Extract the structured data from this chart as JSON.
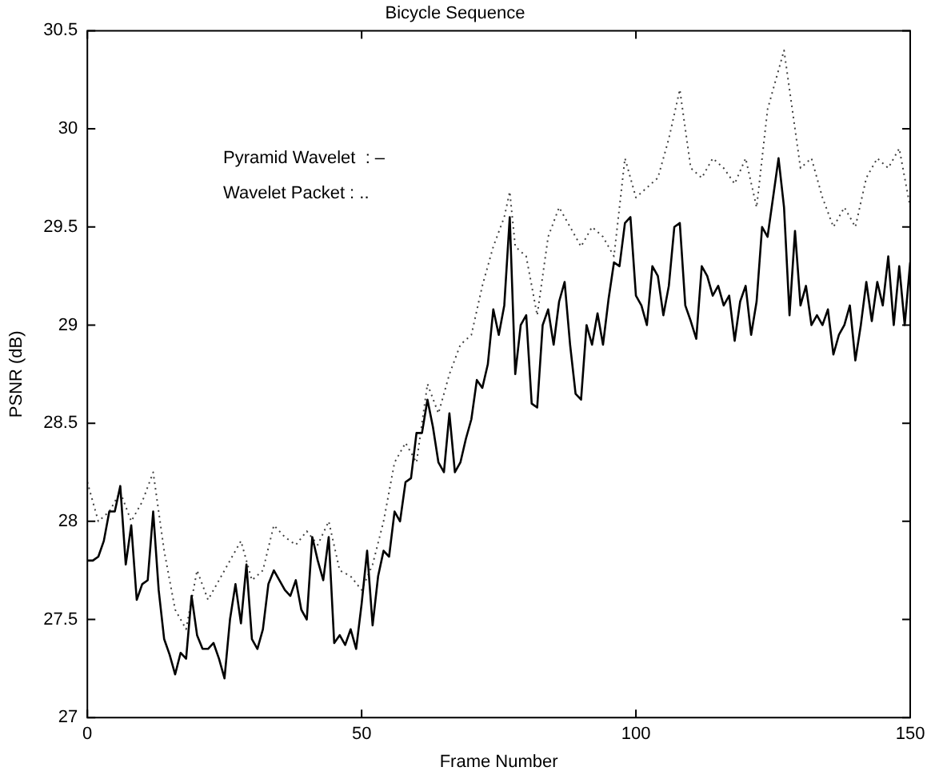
{
  "chart_data": {
    "type": "line",
    "title": "Bicycle Sequence",
    "xlabel": "Frame Number",
    "ylabel": "PSNR (dB)",
    "annotations": [
      "Pyramid Wavelet  : –",
      "Wavelet Packet : .."
    ],
    "xlim": [
      0,
      150
    ],
    "xticks": [
      0,
      50,
      100,
      150
    ],
    "ylim": [
      27,
      30.5
    ],
    "yticks": [
      27,
      27.5,
      28,
      28.5,
      29,
      29.5,
      30,
      30.5
    ],
    "legend": false,
    "series": [
      {
        "color": "#000000",
        "line_style": "solid",
        "x": [
          0,
          1,
          2,
          3,
          4,
          5,
          6,
          7,
          8,
          9,
          10,
          11,
          12,
          13,
          14,
          15,
          16,
          17,
          18,
          19,
          20,
          21,
          22,
          23,
          24,
          25,
          26,
          27,
          28,
          29,
          30,
          31,
          32,
          33,
          34,
          35,
          36,
          37,
          38,
          39,
          40,
          41,
          42,
          43,
          44,
          45,
          46,
          47,
          48,
          49,
          50,
          51,
          52,
          53,
          54,
          55,
          56,
          57,
          58,
          59,
          60,
          61,
          62,
          63,
          64,
          65,
          66,
          67,
          68,
          69,
          70,
          71,
          72,
          73,
          74,
          75,
          76,
          77,
          78,
          79,
          80,
          81,
          82,
          83,
          84,
          85,
          86,
          87,
          88,
          89,
          90,
          91,
          92,
          93,
          94,
          95,
          96,
          97,
          98,
          99,
          100,
          101,
          102,
          103,
          104,
          105,
          106,
          107,
          108,
          109,
          110,
          111,
          112,
          113,
          114,
          115,
          116,
          117,
          118,
          119,
          120,
          121,
          122,
          123,
          124,
          125,
          126,
          127,
          128,
          129,
          130,
          131,
          132,
          133,
          134,
          135,
          136,
          137,
          138,
          139,
          140,
          141,
          142,
          143,
          144,
          145,
          146,
          147,
          148,
          149,
          150
        ],
        "values": [
          27.8,
          27.8,
          27.82,
          27.9,
          28.05,
          28.05,
          28.18,
          27.78,
          27.98,
          27.6,
          27.68,
          27.7,
          28.05,
          27.65,
          27.4,
          27.32,
          27.22,
          27.33,
          27.3,
          27.62,
          27.42,
          27.35,
          27.35,
          27.38,
          27.3,
          27.2,
          27.5,
          27.68,
          27.48,
          27.78,
          27.4,
          27.35,
          27.45,
          27.68,
          27.75,
          27.7,
          27.65,
          27.62,
          27.7,
          27.55,
          27.5,
          27.92,
          27.8,
          27.7,
          27.92,
          27.38,
          27.42,
          27.37,
          27.45,
          27.35,
          27.58,
          27.85,
          27.47,
          27.72,
          27.85,
          27.82,
          28.05,
          28.0,
          28.2,
          28.22,
          28.45,
          28.45,
          28.62,
          28.48,
          28.3,
          28.25,
          28.55,
          28.25,
          28.3,
          28.42,
          28.52,
          28.72,
          28.68,
          28.8,
          29.08,
          28.95,
          29.1,
          29.55,
          28.75,
          29.0,
          29.05,
          28.6,
          28.58,
          29.0,
          29.08,
          28.9,
          29.12,
          29.22,
          28.9,
          28.65,
          28.62,
          29.0,
          28.9,
          29.06,
          28.9,
          29.13,
          29.32,
          29.3,
          29.52,
          29.55,
          29.15,
          29.1,
          29.0,
          29.3,
          29.25,
          29.05,
          29.2,
          29.5,
          29.52,
          29.1,
          29.02,
          28.93,
          29.3,
          29.25,
          29.15,
          29.2,
          29.1,
          29.15,
          28.92,
          29.12,
          29.2,
          28.95,
          29.12,
          29.5,
          29.45,
          29.65,
          29.85,
          29.6,
          29.05,
          29.48,
          29.1,
          29.2,
          29.0,
          29.05,
          29.0,
          29.08,
          28.85,
          28.95,
          29.0,
          29.1,
          28.82,
          29.0,
          29.22,
          29.02,
          29.22,
          29.1,
          29.35,
          29.0,
          29.3,
          29.0,
          29.32
        ]
      },
      {
        "color": "#404040",
        "line_style": "dotted",
        "x": [
          0,
          2,
          4,
          6,
          8,
          10,
          12,
          14,
          16,
          18,
          20,
          22,
          24,
          26,
          28,
          30,
          32,
          34,
          36,
          38,
          40,
          42,
          44,
          46,
          48,
          50,
          52,
          54,
          56,
          58,
          60,
          62,
          64,
          66,
          68,
          70,
          72,
          74,
          76,
          77,
          78,
          80,
          82,
          84,
          86,
          88,
          90,
          92,
          94,
          96,
          98,
          100,
          102,
          104,
          106,
          108,
          110,
          112,
          114,
          116,
          118,
          120,
          122,
          124,
          126,
          127,
          128,
          130,
          132,
          134,
          136,
          138,
          140,
          142,
          144,
          146,
          148,
          150
        ],
        "values": [
          28.2,
          28.0,
          28.05,
          28.15,
          28.0,
          28.1,
          28.25,
          27.85,
          27.55,
          27.45,
          27.75,
          27.6,
          27.7,
          27.8,
          27.9,
          27.7,
          27.75,
          27.98,
          27.92,
          27.88,
          27.95,
          27.88,
          28.0,
          27.75,
          27.72,
          27.65,
          27.78,
          28.0,
          28.3,
          28.4,
          28.3,
          28.7,
          28.55,
          28.75,
          28.9,
          28.95,
          29.2,
          29.4,
          29.55,
          29.68,
          29.4,
          29.35,
          29.05,
          29.45,
          29.6,
          29.5,
          29.4,
          29.5,
          29.45,
          29.35,
          29.85,
          29.65,
          29.7,
          29.75,
          29.95,
          30.2,
          29.8,
          29.75,
          29.85,
          29.8,
          29.72,
          29.85,
          29.6,
          30.1,
          30.3,
          30.4,
          30.2,
          29.8,
          29.85,
          29.65,
          29.5,
          29.6,
          29.5,
          29.75,
          29.85,
          29.8,
          29.9,
          29.6
        ]
      }
    ]
  }
}
